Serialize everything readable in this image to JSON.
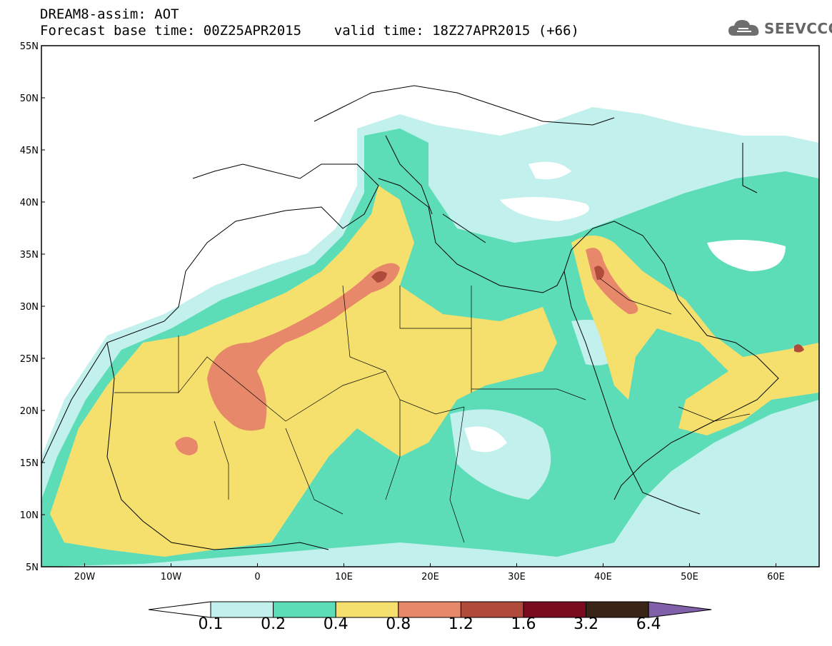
{
  "header": {
    "title_line1": "DREAM8-assim: AOT",
    "title_line2": "Forecast base time: 00Z25APR2015    valid time: 18Z27APR2015 (+66)"
  },
  "logo": {
    "text": "SEEVCCC",
    "icon": "cloud-icon"
  },
  "map": {
    "lat_labels": [
      "55N",
      "50N",
      "45N",
      "40N",
      "35N",
      "30N",
      "25N",
      "20N",
      "15N",
      "10N",
      "5N"
    ],
    "lon_labels": [
      "20W",
      "10W",
      "0",
      "10E",
      "20E",
      "30E",
      "40E",
      "50E",
      "60E"
    ],
    "lat_range": [
      5,
      55
    ],
    "lon_range": [
      -25,
      65
    ]
  },
  "legend": {
    "labels": [
      "0.1",
      "0.2",
      "0.4",
      "0.8",
      "1.2",
      "1.6",
      "3.2",
      "6.4"
    ],
    "colors": [
      "#ffffff",
      "#c2f0ec",
      "#5ddcb8",
      "#f5e06e",
      "#e8886a",
      "#b04a3a",
      "#7a0a1e",
      "#3a2416",
      "#8060a8"
    ]
  }
}
